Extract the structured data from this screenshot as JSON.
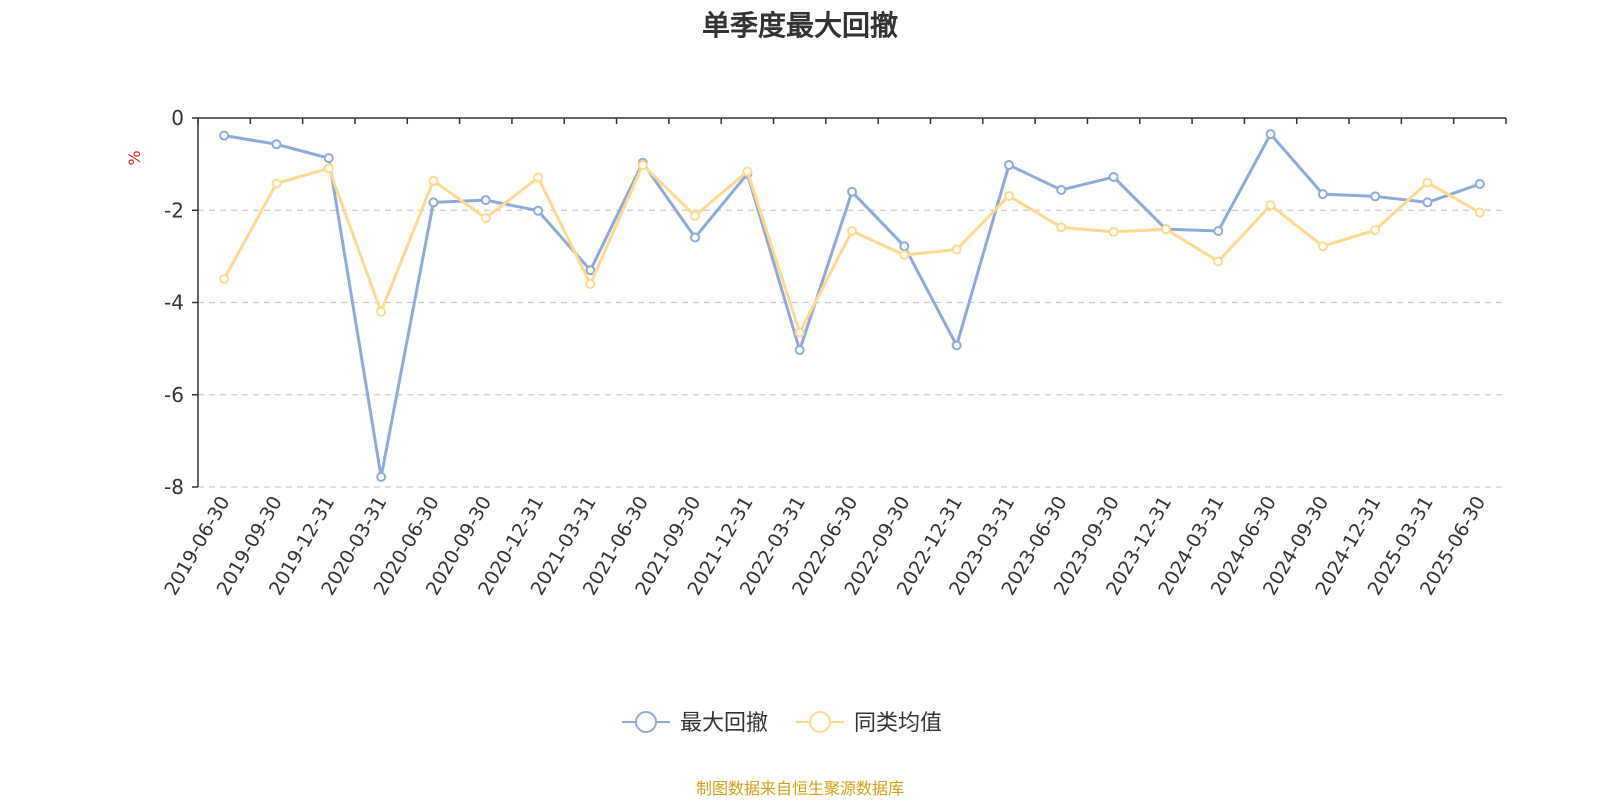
{
  "chart_data": {
    "type": "line",
    "title": "单季度最大回撤",
    "ylabel": "%",
    "ylim": [
      -8,
      0
    ],
    "yticks": [
      0,
      -2,
      -4,
      -6,
      -8
    ],
    "grid": true,
    "legend_position": "bottom",
    "categories": [
      "2019-06-30",
      "2019-09-30",
      "2019-12-31",
      "2020-03-31",
      "2020-06-30",
      "2020-09-30",
      "2020-12-31",
      "2021-03-31",
      "2021-06-30",
      "2021-09-30",
      "2021-12-31",
      "2022-03-31",
      "2022-06-30",
      "2022-09-30",
      "2022-12-31",
      "2023-03-31",
      "2023-06-30",
      "2023-09-30",
      "2023-12-31",
      "2024-03-31",
      "2024-06-30",
      "2024-09-30",
      "2024-12-31",
      "2025-03-31",
      "2025-06-30"
    ],
    "series": [
      {
        "name": "最大回撤",
        "color": "#8eaadb",
        "values": [
          -0.38,
          -0.57,
          -0.87,
          -7.78,
          -1.83,
          -1.78,
          -2.01,
          -3.3,
          -0.97,
          -2.59,
          -1.21,
          -5.03,
          -1.6,
          -2.78,
          -4.93,
          -1.02,
          -1.56,
          -1.28,
          -2.41,
          -2.45,
          -0.35,
          -1.65,
          -1.7,
          -1.83,
          -1.43
        ]
      },
      {
        "name": "同类均值",
        "color": "#ffd990",
        "values": [
          -3.49,
          -1.42,
          -1.09,
          -4.2,
          -1.36,
          -2.17,
          -1.29,
          -3.6,
          -1.02,
          -2.12,
          -1.16,
          -4.65,
          -2.45,
          -2.97,
          -2.85,
          -1.69,
          -2.37,
          -2.47,
          -2.41,
          -3.11,
          -1.89,
          -2.78,
          -2.43,
          -1.4,
          -2.05
        ]
      }
    ]
  },
  "footer": {
    "source": "制图数据来自恒生聚源数据库"
  }
}
